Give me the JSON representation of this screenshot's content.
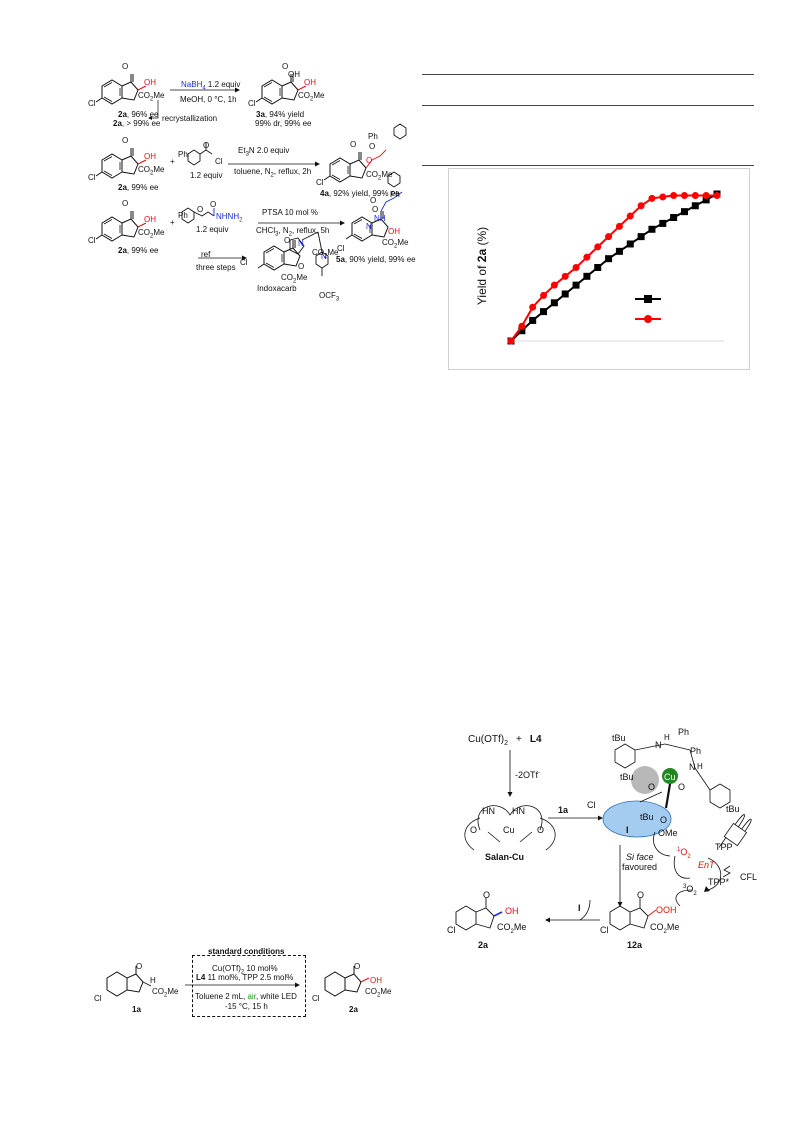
{
  "scheme_top_left": {
    "row1": {
      "sm_label": "2a",
      "sm_ee": ", 96% ee",
      "recryst_label": "2a",
      "recryst_ee": ", > 99% ee",
      "recryst_text": "recrystallization",
      "reagent": "NaBH",
      "reagent_sub": "4",
      "reagent_equiv": " 1.2 equiv",
      "conditions": "MeOH, 0 °C, 1h",
      "product_label": "3a",
      "product_yield": ", 94% yield",
      "product_detail": "99% dr, 99% ee"
    },
    "row2": {
      "sm_label": "2a",
      "sm_ee": ", 99% ee",
      "reagent_equiv": "1.2 equiv",
      "reagent_top": "Et",
      "reagent_top_sub": "3",
      "reagent_top_rest": "N 2.0 equiv",
      "conditions": "toluene, N",
      "conditions_sub": "2",
      "conditions_rest": ", reflux, 2h",
      "product_label": "4a",
      "product_yield": ", 92% yield, 99% ee"
    },
    "row3": {
      "sm_label": "2a",
      "sm_ee": ", 99% ee",
      "reagent_equiv": "1.2 equiv",
      "catalyst": "PTSA 10 mol %",
      "conditions": "CHCl",
      "conditions_sub": "3",
      "conditions_rest": ", N",
      "conditions_sub2": "2",
      "conditions_rest2": ", reflux, 5h",
      "product_label": "5a",
      "product_yield": ", 90% yield, 99% ee"
    },
    "row4": {
      "arrow_top": "ref",
      "arrow_bottom": "three steps",
      "product_name": "Indoxacarb"
    }
  },
  "chart": {
    "ylabel_prefix": "Yield of ",
    "ylabel_bold": "2a",
    "ylabel_suffix": " (%)"
  },
  "chart_data": {
    "type": "line",
    "title": "",
    "xlabel": "",
    "ylabel": "Yield of 2a (%)",
    "x": [
      0,
      1,
      2,
      3,
      4,
      5,
      6,
      7,
      8,
      9,
      10,
      11,
      12,
      13,
      14,
      15,
      16,
      17,
      18,
      19
    ],
    "series": [
      {
        "color": "#000000",
        "marker": "square",
        "values": [
          0,
          7,
          14,
          20,
          26,
          32,
          38,
          44,
          50,
          56,
          61,
          66,
          71,
          76,
          80,
          84,
          88,
          92,
          96,
          100
        ]
      },
      {
        "color": "#ff0000",
        "marker": "circle",
        "values": [
          0,
          10,
          23,
          31,
          38,
          44,
          50,
          57,
          64,
          71,
          78,
          85,
          92,
          97,
          98,
          99,
          99,
          99,
          99,
          99
        ]
      }
    ],
    "legend_placement": "right",
    "grid": false
  },
  "mechanism": {
    "cu_salt": "Cu(OTf)",
    "cu_salt_sub": "2",
    "plus": "+",
    "ligand": "L4",
    "step1": "-2OTf",
    "step1_sup": "-",
    "salan_label": "Salan-Cu",
    "hn1": "HN",
    "hn2": "HN",
    "cu": "Cu",
    "o1": "O",
    "o2": "O",
    "arrow_1a": "1a",
    "tbu": "tBu",
    "ph": "Ph",
    "cu_center": "Cu",
    "n": "N",
    "h": "H",
    "o": "O",
    "cl": "Cl",
    "ome": "OMe",
    "int_label": "I",
    "singlet": "1",
    "singlet_o": "O",
    "singlet_sub": "2",
    "triplet": "3",
    "triplet_o": "O",
    "triplet_sub": "2",
    "tpp": "TPP",
    "tpp_star": "TPP*",
    "ent": "EnT",
    "cfl": "CFL",
    "si_face": "Si face",
    "favoured": "favoured",
    "arrow_I": "I",
    "prod_2a": "2a",
    "prod_12a": "12a",
    "ooh": "OOH",
    "oh": "OH",
    "co2me": "CO",
    "co2me_sub": "2",
    "co2me_rest": "Me"
  },
  "std_conditions": {
    "title": "standard conditions",
    "line1": "Cu(OTf)",
    "line1_sub": "2",
    "line1_rest": " 10 mol%",
    "line2_bold": "L4",
    "line2_rest": " 11 mol%, TPP 2.5 mol%",
    "line3_a": "Toluene 2 mL, ",
    "line3_air": "air",
    "line3_b": ", white LED",
    "line4": "-15 °C, 15 h",
    "sm_label": "1a",
    "product_label": "2a"
  },
  "common": {
    "cl": "Cl",
    "o": "O",
    "oh": "OH",
    "co2me_a": "CO",
    "co2me_sub": "2",
    "co2me_b": "Me",
    "h": "H",
    "ph": "Ph",
    "nh": "NH",
    "n": "N",
    "nhnh2": "NHNH",
    "nhnh2_sub": "2",
    "ocf3": "OCF",
    "ocf3_sub": "3",
    "co2me_ind": "CO",
    "co2me_ind_sub": "2",
    "co2me_ind_b": "Me"
  }
}
